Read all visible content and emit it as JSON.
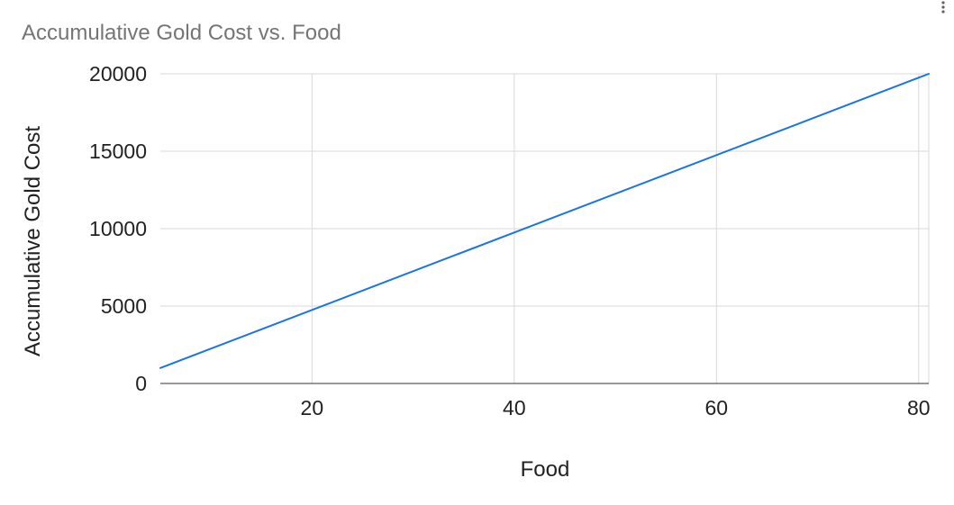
{
  "chart_data": {
    "type": "line",
    "title": "Accumulative Gold Cost vs. Food",
    "xlabel": "Food",
    "ylabel": "Accumulative Gold Cost",
    "xlim": [
      5,
      81
    ],
    "ylim": [
      0,
      20000
    ],
    "x_ticks": [
      20,
      40,
      60,
      80
    ],
    "y_ticks": [
      0,
      5000,
      10000,
      15000,
      20000
    ],
    "grid": true,
    "legend": "none",
    "series": [
      {
        "color": "#1a73e8",
        "points": [
          [
            5,
            1000
          ],
          [
            81,
            20000
          ]
        ]
      }
    ]
  },
  "icons": {
    "menu": "more-vert-icon"
  }
}
